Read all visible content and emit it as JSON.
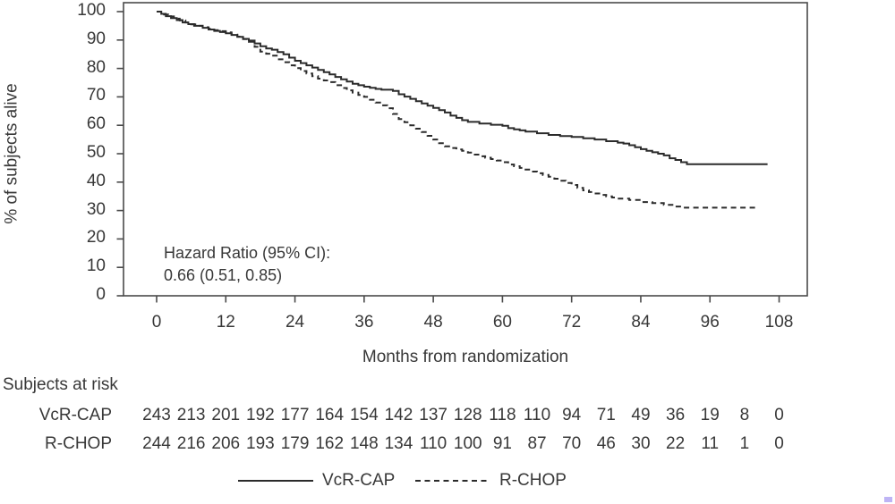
{
  "figure": {
    "y_axis_label": "% of subjects alive",
    "x_axis_label": "Months from randomization",
    "annotation_line1": "Hazard Ratio (95% CI):",
    "annotation_line2": "0.66 (0.51, 0.85)",
    "risk_table": {
      "title": "Subjects at risk",
      "rows": [
        {
          "label": "VcR-CAP",
          "counts": [
            243,
            213,
            201,
            192,
            177,
            164,
            154,
            142,
            137,
            128,
            118,
            110,
            94,
            71,
            49,
            36,
            19,
            8,
            0
          ]
        },
        {
          "label": "R-CHOP",
          "counts": [
            244,
            216,
            206,
            193,
            179,
            162,
            148,
            134,
            110,
            100,
            91,
            87,
            70,
            46,
            30,
            22,
            11,
            1,
            0
          ]
        }
      ]
    },
    "legend": [
      {
        "label": "VcR-CAP",
        "style": "solid"
      },
      {
        "label": "R-CHOP",
        "style": "dashed"
      }
    ],
    "colors": {
      "line": "#2b2b2b",
      "axis": "#4a4a4a",
      "text": "#383838"
    }
  },
  "chart_data": {
    "type": "line",
    "subtype": "kaplan-meier-step",
    "title": "",
    "xlabel": "Months from randomization",
    "ylabel": "% of subjects alive",
    "xlim": [
      0,
      108
    ],
    "ylim": [
      0,
      100
    ],
    "x_ticks": [
      0,
      12,
      24,
      36,
      48,
      60,
      72,
      84,
      96,
      108
    ],
    "y_ticks": [
      0,
      10,
      20,
      30,
      40,
      50,
      60,
      70,
      80,
      90,
      100
    ],
    "grid": false,
    "legend_position": "bottom",
    "annotation": "Hazard Ratio (95% CI): 0.66 (0.51, 0.85)",
    "series": [
      {
        "name": "VcR-CAP",
        "line_style": "solid",
        "points": [
          [
            0,
            100
          ],
          [
            0.8,
            99.2
          ],
          [
            1.6,
            98.4
          ],
          [
            2.5,
            97.7
          ],
          [
            3.5,
            97
          ],
          [
            4.5,
            96.2
          ],
          [
            5.5,
            95.6
          ],
          [
            6.5,
            95
          ],
          [
            8,
            94.3
          ],
          [
            9,
            93.7
          ],
          [
            10,
            93.2
          ],
          [
            11,
            92.8
          ],
          [
            12,
            92.4
          ],
          [
            13,
            91.8
          ],
          [
            14,
            91.1
          ],
          [
            15,
            90.4
          ],
          [
            16,
            89.8
          ],
          [
            17,
            88.8
          ],
          [
            18,
            87.8
          ],
          [
            19,
            87
          ],
          [
            20,
            86.6
          ],
          [
            21,
            85.8
          ],
          [
            22,
            85
          ],
          [
            23,
            83.8
          ],
          [
            24,
            82.7
          ],
          [
            25,
            81.9
          ],
          [
            26,
            81.1
          ],
          [
            27,
            80.3
          ],
          [
            28,
            79.5
          ],
          [
            29,
            78.7
          ],
          [
            30,
            77.9
          ],
          [
            31,
            77
          ],
          [
            32,
            76.2
          ],
          [
            33,
            75.4
          ],
          [
            34,
            74.6
          ],
          [
            35,
            74.1
          ],
          [
            36,
            73.6
          ],
          [
            37,
            73.2
          ],
          [
            38,
            72.8
          ],
          [
            39,
            72.5
          ],
          [
            41,
            72.1
          ],
          [
            42,
            70.9
          ],
          [
            43,
            70.1
          ],
          [
            44,
            69.3
          ],
          [
            45,
            68.5
          ],
          [
            46,
            67.7
          ],
          [
            47,
            66.9
          ],
          [
            48,
            66.1
          ],
          [
            49,
            65.3
          ],
          [
            50,
            64.5
          ],
          [
            51,
            63.4
          ],
          [
            52,
            62.6
          ],
          [
            53,
            61.8
          ],
          [
            54,
            61.2
          ],
          [
            56,
            60.6
          ],
          [
            58,
            60.2
          ],
          [
            60,
            59.8
          ],
          [
            61,
            59
          ],
          [
            62,
            58.6
          ],
          [
            63,
            58.2
          ],
          [
            64,
            57.8
          ],
          [
            66,
            57.2
          ],
          [
            68,
            56.6
          ],
          [
            70,
            56.2
          ],
          [
            72,
            55.9
          ],
          [
            74,
            55.4
          ],
          [
            76,
            55
          ],
          [
            78,
            54.4
          ],
          [
            80,
            53.9
          ],
          [
            81,
            53.6
          ],
          [
            82,
            53
          ],
          [
            83,
            52.3
          ],
          [
            84,
            51.6
          ],
          [
            85,
            51
          ],
          [
            86,
            50.5
          ],
          [
            87,
            50
          ],
          [
            88,
            49.4
          ],
          [
            89,
            48.4
          ],
          [
            90,
            47.8
          ],
          [
            91,
            47
          ],
          [
            92,
            46.3
          ],
          [
            106,
            46.3
          ]
        ]
      },
      {
        "name": "R-CHOP",
        "line_style": "dashed",
        "points": [
          [
            0,
            100
          ],
          [
            1,
            99
          ],
          [
            2,
            98.3
          ],
          [
            3,
            97.5
          ],
          [
            4,
            96.9
          ],
          [
            5,
            96.2
          ],
          [
            6,
            95.5
          ],
          [
            7,
            95
          ],
          [
            8,
            94.5
          ],
          [
            9,
            94
          ],
          [
            10,
            93.5
          ],
          [
            11,
            93.1
          ],
          [
            12,
            92.7
          ],
          [
            13,
            91.9
          ],
          [
            14,
            91.2
          ],
          [
            15,
            90.3
          ],
          [
            16,
            89.4
          ],
          [
            17,
            87.6
          ],
          [
            18,
            85.9
          ],
          [
            19,
            85.2
          ],
          [
            20,
            84.5
          ],
          [
            21,
            83.2
          ],
          [
            22,
            82.2
          ],
          [
            23,
            81.1
          ],
          [
            24,
            80.1
          ],
          [
            25,
            79.1
          ],
          [
            26,
            78.2
          ],
          [
            27,
            77.3
          ],
          [
            28,
            76.4
          ],
          [
            29,
            75.8
          ],
          [
            30,
            75.2
          ],
          [
            31,
            74.1
          ],
          [
            32,
            73.1
          ],
          [
            33,
            72.3
          ],
          [
            34,
            71.5
          ],
          [
            35,
            70.7
          ],
          [
            36,
            70
          ],
          [
            37,
            69
          ],
          [
            38,
            68
          ],
          [
            39,
            67
          ],
          [
            40,
            66
          ],
          [
            41,
            64
          ],
          [
            42,
            62.2
          ],
          [
            43,
            61.1
          ],
          [
            44,
            60
          ],
          [
            45,
            58.8
          ],
          [
            46,
            57.6
          ],
          [
            47,
            56.3
          ],
          [
            48,
            55
          ],
          [
            49,
            53.7
          ],
          [
            50,
            52.6
          ],
          [
            51,
            52
          ],
          [
            52,
            51.5
          ],
          [
            53,
            51
          ],
          [
            54,
            50.4
          ],
          [
            55,
            49.7
          ],
          [
            56,
            49.1
          ],
          [
            57,
            48.6
          ],
          [
            58,
            48.1
          ],
          [
            59,
            47.6
          ],
          [
            60,
            47
          ],
          [
            61,
            46.2
          ],
          [
            62,
            45.6
          ],
          [
            63,
            45
          ],
          [
            64,
            44.4
          ],
          [
            65,
            43.7
          ],
          [
            66,
            43.1
          ],
          [
            67,
            42.5
          ],
          [
            68,
            41.9
          ],
          [
            69,
            41.2
          ],
          [
            70,
            40.5
          ],
          [
            71,
            39.7
          ],
          [
            72,
            39
          ],
          [
            73,
            38
          ],
          [
            74,
            37.1
          ],
          [
            75,
            36.5
          ],
          [
            76,
            36
          ],
          [
            77,
            35.5
          ],
          [
            78,
            35
          ],
          [
            79,
            34.6
          ],
          [
            80,
            34.2
          ],
          [
            82,
            33.7
          ],
          [
            84,
            33
          ],
          [
            86,
            32.6
          ],
          [
            88,
            32
          ],
          [
            90,
            31.4
          ],
          [
            91,
            31
          ],
          [
            104,
            31
          ]
        ]
      }
    ],
    "subjects_at_risk": {
      "months": [
        0,
        6,
        12,
        18,
        24,
        30,
        36,
        42,
        48,
        54,
        60,
        66,
        72,
        78,
        84,
        90,
        96,
        102,
        108
      ],
      "VcR-CAP": [
        243,
        213,
        201,
        192,
        177,
        164,
        154,
        142,
        137,
        128,
        118,
        110,
        94,
        71,
        49,
        36,
        19,
        8,
        0
      ],
      "R-CHOP": [
        244,
        216,
        206,
        193,
        179,
        162,
        148,
        134,
        110,
        100,
        91,
        87,
        70,
        46,
        30,
        22,
        11,
        1,
        0
      ]
    }
  }
}
